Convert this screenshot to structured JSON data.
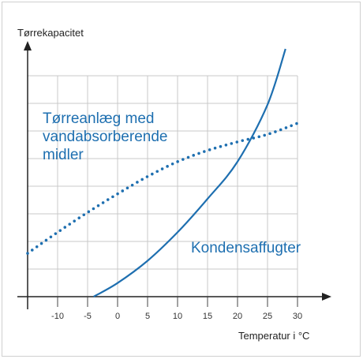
{
  "chart_data": {
    "type": "line",
    "title": "",
    "ylabel": "Tørrekapacitet",
    "xlabel": "Temperatur i °C",
    "x_ticks": [
      "-10",
      "-5",
      "0",
      "5",
      "10",
      "15",
      "20",
      "25",
      "30"
    ],
    "x_tick_values": [
      -10,
      -5,
      0,
      5,
      10,
      15,
      20,
      25,
      30
    ],
    "xlim": [
      -15,
      30
    ],
    "ylim": [
      0,
      10
    ],
    "grid": true,
    "colors": {
      "series": "#1e6fb0",
      "grid": "#c9c9c9",
      "axis": "#222222"
    },
    "series": [
      {
        "name": "Tørreanlæg med vandabsorberende midler",
        "style": "dotted",
        "x": [
          -15,
          -10,
          -5,
          0,
          5,
          10,
          15,
          20,
          25,
          30
        ],
        "y": [
          1.75,
          2.6,
          3.4,
          4.15,
          4.85,
          5.45,
          5.9,
          6.25,
          6.55,
          7.0
        ]
      },
      {
        "name": "Kondensaffugter",
        "style": "solid",
        "x": [
          -4,
          0,
          5,
          10,
          15,
          20,
          25,
          28
        ],
        "y": [
          0,
          0.55,
          1.45,
          2.6,
          3.95,
          5.45,
          7.75,
          10
        ]
      }
    ],
    "series_label_lines": [
      [
        "Tørreanlæg med",
        "vandabsorberende",
        "midler"
      ],
      [
        "Kondensaffugter"
      ]
    ]
  }
}
